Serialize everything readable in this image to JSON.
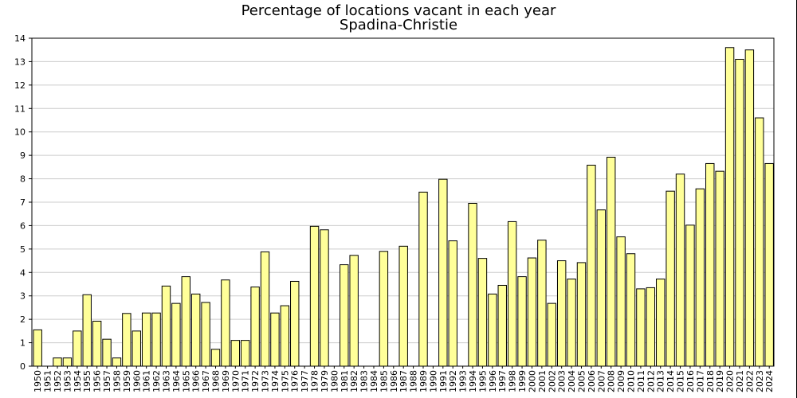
{
  "chart_data": {
    "type": "bar",
    "title": "Percentage of locations vacant in each year",
    "subtitle": "Spadina-Christie",
    "xlabel": "",
    "ylabel": "",
    "ylim": [
      0,
      14
    ],
    "yticks": [
      0,
      1,
      2,
      3,
      4,
      5,
      6,
      7,
      8,
      9,
      10,
      11,
      12,
      13,
      14
    ],
    "grid": true,
    "legend": "none",
    "categories": [
      "1950",
      "1951",
      "1952",
      "1953",
      "1954",
      "1955",
      "1956",
      "1957",
      "1958",
      "1959",
      "1960",
      "1961",
      "1962",
      "1963",
      "1964",
      "1965",
      "1966",
      "1967",
      "1968",
      "1969",
      "1970",
      "1971",
      "1972",
      "1973",
      "1974",
      "1975",
      "1976",
      "1977",
      "1978",
      "1979",
      "1980",
      "1981",
      "1982",
      "1983",
      "1984",
      "1985",
      "1986",
      "1987",
      "1988",
      "1989",
      "1990",
      "1991",
      "1992",
      "1993",
      "1994",
      "1995",
      "1996",
      "1997",
      "1998",
      "1999",
      "2000",
      "2001",
      "2002",
      "2003",
      "2004",
      "2005",
      "2006",
      "2007",
      "2008",
      "2009",
      "2010",
      "2011",
      "2012",
      "2013",
      "2014",
      "2015",
      "2016",
      "2017",
      "2018",
      "2019",
      "2020",
      "2021",
      "2022",
      "2023",
      "2024"
    ],
    "values": [
      1.55,
      null,
      0.35,
      0.35,
      1.5,
      3.05,
      1.92,
      1.15,
      0.35,
      2.25,
      1.5,
      2.27,
      2.27,
      3.42,
      2.68,
      3.82,
      3.08,
      2.72,
      0.72,
      3.68,
      1.1,
      1.1,
      3.38,
      4.88,
      2.27,
      2.58,
      3.62,
      null,
      5.97,
      5.82,
      null,
      4.33,
      4.73,
      null,
      null,
      4.9,
      null,
      5.12,
      null,
      7.43,
      null,
      7.98,
      5.35,
      null,
      6.95,
      4.6,
      3.08,
      3.45,
      6.17,
      3.82,
      4.62,
      5.38,
      2.68,
      4.5,
      3.72,
      4.42,
      8.58,
      6.67,
      8.92,
      5.52,
      4.8,
      3.3,
      3.35,
      3.72,
      7.47,
      8.2,
      6.02,
      7.57,
      8.65,
      8.32,
      13.6,
      13.1,
      13.5,
      10.6,
      8.65
    ],
    "colors": {
      "bar_fill": "#ffff99",
      "bar_stroke": "#000000",
      "grid": "#cccccc",
      "border": "#000000"
    }
  }
}
